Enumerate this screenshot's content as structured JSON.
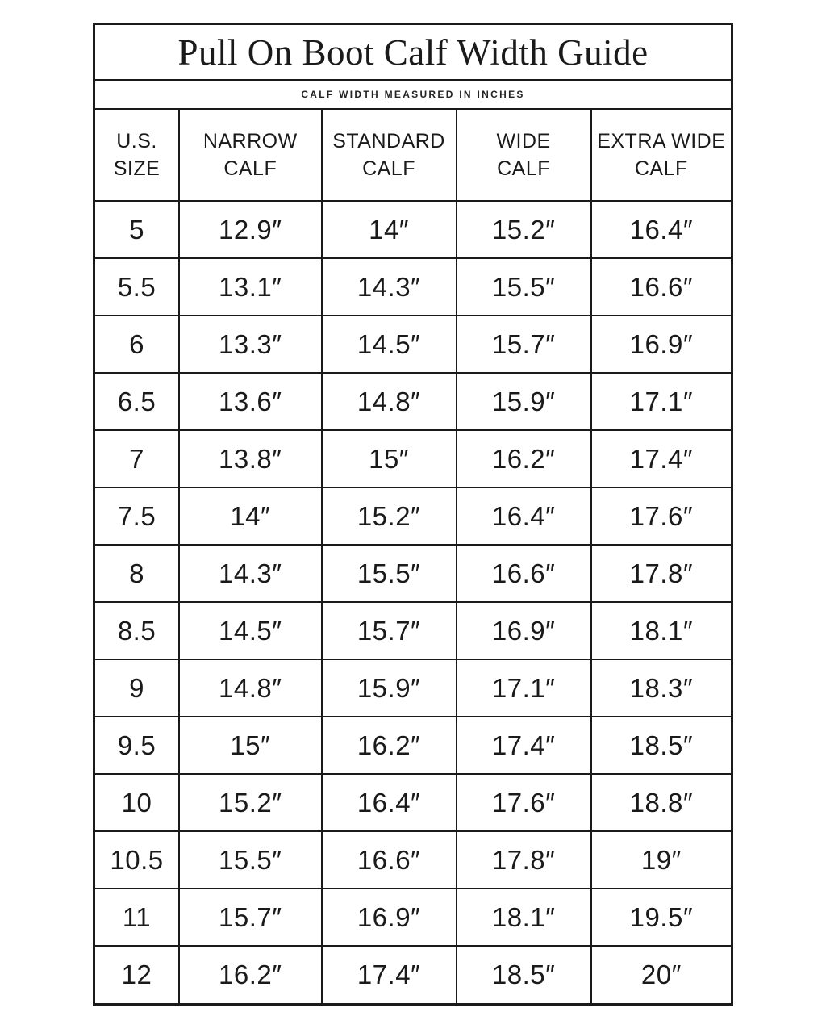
{
  "title": "Pull On Boot Calf Width Guide",
  "subtitle": "CALF WIDTH MEASURED IN INCHES",
  "colors": {
    "border": "#1a1a1a",
    "text": "#1a1a1a",
    "background": "#ffffff"
  },
  "chart_data": {
    "type": "table",
    "title": "Pull On Boot Calf Width Guide",
    "subtitle": "CALF WIDTH MEASURED IN INCHES",
    "unit": "inches",
    "columns": [
      {
        "line1": "U.S.",
        "line2": "SIZE"
      },
      {
        "line1": "NARROW",
        "line2": "CALF"
      },
      {
        "line1": "STANDARD",
        "line2": "CALF"
      },
      {
        "line1": "WIDE",
        "line2": "CALF"
      },
      {
        "line1": "EXTRA WIDE",
        "line2": "CALF"
      }
    ],
    "rows": [
      [
        "5",
        "12.9″",
        "14″",
        "15.2″",
        "16.4″"
      ],
      [
        "5.5",
        "13.1″",
        "14.3″",
        "15.5″",
        "16.6″"
      ],
      [
        "6",
        "13.3″",
        "14.5″",
        "15.7″",
        "16.9″"
      ],
      [
        "6.5",
        "13.6″",
        "14.8″",
        "15.9″",
        "17.1″"
      ],
      [
        "7",
        "13.8″",
        "15″",
        "16.2″",
        "17.4″"
      ],
      [
        "7.5",
        "14″",
        "15.2″",
        "16.4″",
        "17.6″"
      ],
      [
        "8",
        "14.3″",
        "15.5″",
        "16.6″",
        "17.8″"
      ],
      [
        "8.5",
        "14.5″",
        "15.7″",
        "16.9″",
        "18.1″"
      ],
      [
        "9",
        "14.8″",
        "15.9″",
        "17.1″",
        "18.3″"
      ],
      [
        "9.5",
        "15″",
        "16.2″",
        "17.4″",
        "18.5″"
      ],
      [
        "10",
        "15.2″",
        "16.4″",
        "17.6″",
        "18.8″"
      ],
      [
        "10.5",
        "15.5″",
        "16.6″",
        "17.8″",
        "19″"
      ],
      [
        "11",
        "15.7″",
        "16.9″",
        "18.1″",
        "19.5″"
      ],
      [
        "12",
        "16.2″",
        "17.4″",
        "18.5″",
        "20″"
      ]
    ]
  }
}
